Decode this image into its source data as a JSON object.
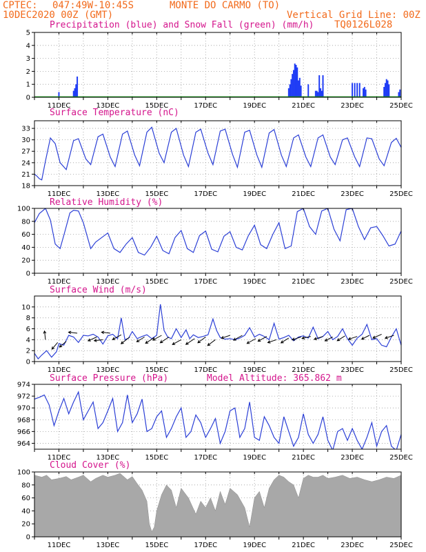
{
  "header": {
    "source": "CPTEC:",
    "coords": "047:49W-10:45S",
    "station": "MONTE DO CARMO (TO)",
    "run": "10DEC2020 00Z (GMT)",
    "grid_note": "Vertical Grid Line: 00Z",
    "code": "TQ0126L028"
  },
  "x_axis": {
    "start": "10DEC2020 00Z",
    "end": "25DEC2020 00Z",
    "day_ticks": [
      1,
      2,
      3,
      4,
      5,
      6,
      7,
      8,
      9,
      10,
      11,
      12,
      13,
      14,
      15
    ],
    "labels": [
      {
        "day": 1,
        "text": "11DEC"
      },
      {
        "day": 3,
        "text": "13DEC"
      },
      {
        "day": 5,
        "text": "15DEC"
      },
      {
        "day": 7,
        "text": "17DEC"
      },
      {
        "day": 9,
        "text": "19DEC"
      },
      {
        "day": 11,
        "text": "21DEC"
      },
      {
        "day": 13,
        "text": "23DEC"
      },
      {
        "day": 15,
        "text": "25DEC"
      }
    ]
  },
  "colors": {
    "line": "#2b3fd6",
    "precip": "#1f3cf5",
    "snow": "#1aa01a",
    "cloud": "#a8a8a8",
    "title": "#d4148c",
    "header": "#f26a1b",
    "arrow": "#000000"
  },
  "chart_data": [
    {
      "id": "precip",
      "type": "bar",
      "title": "Precipitation (blue) and Snow Fall (green) (mm/h)",
      "ylim": [
        0,
        5
      ],
      "yticks": [
        0,
        1,
        2,
        3,
        4,
        5
      ],
      "grid": true,
      "series": [
        {
          "name": "Precipitation",
          "x": [
            1.0,
            1.6,
            1.65,
            1.7,
            1.75,
            10.4,
            10.45,
            10.5,
            10.55,
            10.6,
            10.65,
            10.7,
            10.75,
            10.8,
            10.85,
            10.9,
            11.2,
            11.5,
            11.55,
            11.6,
            11.65,
            11.7,
            11.75,
            11.8,
            13.0,
            13.1,
            13.2,
            13.3,
            13.45,
            13.5,
            13.55,
            14.3,
            14.35,
            14.4,
            14.45,
            14.5,
            14.9,
            14.95
          ],
          "values": [
            0.4,
            0.5,
            0.7,
            1.0,
            1.6,
            0.7,
            1.0,
            1.4,
            1.8,
            2.1,
            2.6,
            2.5,
            2.3,
            1.3,
            1.5,
            0.9,
            1.0,
            0.5,
            0.5,
            0.4,
            1.7,
            0.7,
            0.5,
            1.7,
            1.1,
            1.1,
            1.1,
            1.1,
            0.7,
            0.8,
            0.6,
            0.8,
            1.1,
            1.4,
            1.3,
            1.0,
            0.4,
            0.6
          ]
        },
        {
          "name": "Snow Fall",
          "x": [
            0,
            15
          ],
          "values": [
            0,
            0
          ]
        }
      ]
    },
    {
      "id": "temperature",
      "type": "line",
      "title": "Surface Temperature (nC)",
      "ylim": [
        18,
        35
      ],
      "yticks": [
        18,
        21,
        24,
        27,
        30,
        33
      ],
      "grid": true,
      "series": [
        {
          "name": "Temperature",
          "x": [
            0,
            0.1,
            0.2,
            0.3,
            0.45,
            0.65,
            0.85,
            1.05,
            1.3,
            1.6,
            1.8,
            2.1,
            2.3,
            2.6,
            2.8,
            3.1,
            3.3,
            3.6,
            3.8,
            4.1,
            4.3,
            4.6,
            4.8,
            5.1,
            5.3,
            5.6,
            5.8,
            6.1,
            6.3,
            6.6,
            6.8,
            7.1,
            7.3,
            7.6,
            7.8,
            8.1,
            8.3,
            8.6,
            8.8,
            9.1,
            9.3,
            9.6,
            9.8,
            10.1,
            10.3,
            10.6,
            10.8,
            11.1,
            11.3,
            11.6,
            11.8,
            12.1,
            12.3,
            12.6,
            12.8,
            13.1,
            13.3,
            13.6,
            13.8,
            14.1,
            14.3,
            14.6,
            14.8,
            15.0
          ],
          "values": [
            21.0,
            20.5,
            19.8,
            19.5,
            24.5,
            30.5,
            29.0,
            24.0,
            22.2,
            29.8,
            30.3,
            25.0,
            23.5,
            30.8,
            31.5,
            25.5,
            23.0,
            31.5,
            32.3,
            26.0,
            23.2,
            32.0,
            33.3,
            26.5,
            24.0,
            32.0,
            33.0,
            26.0,
            23.0,
            32.0,
            32.8,
            26.5,
            23.5,
            32.3,
            32.8,
            26.2,
            22.8,
            32.0,
            32.5,
            26.0,
            22.8,
            31.8,
            32.7,
            26.0,
            23.0,
            30.5,
            31.3,
            25.5,
            23.0,
            30.5,
            31.3,
            25.5,
            23.5,
            30.0,
            30.5,
            25.5,
            23.0,
            30.5,
            30.3,
            25.0,
            23.2,
            29.3,
            30.4,
            28.0
          ]
        }
      ]
    },
    {
      "id": "humidity",
      "type": "line",
      "title": "Relative Humidity (%)",
      "ylim": [
        0,
        100
      ],
      "yticks": [
        0,
        20,
        40,
        60,
        80,
        100
      ],
      "grid": true,
      "series": [
        {
          "name": "Relative Humidity",
          "x": [
            0,
            0.2,
            0.45,
            0.65,
            0.85,
            1.05,
            1.25,
            1.45,
            1.6,
            1.8,
            2.0,
            2.3,
            2.5,
            2.75,
            3.0,
            3.25,
            3.5,
            3.75,
            4.0,
            4.25,
            4.5,
            4.75,
            5.0,
            5.25,
            5.5,
            5.75,
            6.0,
            6.25,
            6.5,
            6.75,
            7.0,
            7.25,
            7.5,
            7.75,
            8.0,
            8.25,
            8.5,
            8.75,
            9.0,
            9.25,
            9.5,
            9.75,
            10.0,
            10.25,
            10.5,
            10.75,
            11.0,
            11.25,
            11.5,
            11.75,
            12.0,
            12.25,
            12.5,
            12.75,
            13.0,
            13.25,
            13.5,
            13.75,
            14.0,
            14.25,
            14.5,
            14.75,
            15.0
          ],
          "values": [
            78,
            92,
            100,
            82,
            45,
            38,
            65,
            93,
            97,
            96,
            78,
            38,
            48,
            55,
            62,
            38,
            32,
            45,
            55,
            32,
            28,
            40,
            57,
            35,
            30,
            55,
            66,
            38,
            32,
            58,
            65,
            37,
            33,
            57,
            64,
            40,
            36,
            58,
            74,
            44,
            38,
            60,
            78,
            38,
            42,
            95,
            100,
            72,
            60,
            96,
            100,
            68,
            50,
            98,
            100,
            72,
            52,
            70,
            72,
            58,
            42,
            45,
            65
          ]
        }
      ]
    },
    {
      "id": "wind",
      "type": "line",
      "title": "Surface Wind (m/s)",
      "ylim": [
        0,
        12
      ],
      "yticks": [
        0,
        2,
        4,
        6,
        8,
        10
      ],
      "grid": true,
      "series": [
        {
          "name": "Wind Speed",
          "x": [
            0,
            0.15,
            0.3,
            0.5,
            0.7,
            0.9,
            1.0,
            1.2,
            1.4,
            1.6,
            1.8,
            2.0,
            2.2,
            2.4,
            2.6,
            2.8,
            3.0,
            3.2,
            3.4,
            3.55,
            3.7,
            3.85,
            4.0,
            4.2,
            4.4,
            4.6,
            4.8,
            5.0,
            5.15,
            5.3,
            5.45,
            5.6,
            5.8,
            6.0,
            6.2,
            6.35,
            6.5,
            6.7,
            6.9,
            7.1,
            7.3,
            7.45,
            7.6,
            7.8,
            8.0,
            8.2,
            8.4,
            8.6,
            8.8,
            9.0,
            9.2,
            9.4,
            9.6,
            9.8,
            10.0,
            10.2,
            10.4,
            10.6,
            10.8,
            11.0,
            11.2,
            11.4,
            11.6,
            11.8,
            12.0,
            12.2,
            12.4,
            12.6,
            12.8,
            13.0,
            13.2,
            13.4,
            13.6,
            13.8,
            14.0,
            14.2,
            14.4,
            14.6,
            14.8,
            15.0
          ],
          "values": [
            1.5,
            0.5,
            1.2,
            2.0,
            0.8,
            1.8,
            3.3,
            3.0,
            4.8,
            4.5,
            3.5,
            4.8,
            4.7,
            5.0,
            4.5,
            3.2,
            4.7,
            5.0,
            4.2,
            8.0,
            4.0,
            4.3,
            5.5,
            4.2,
            4.6,
            4.9,
            4.2,
            4.8,
            10.5,
            5.7,
            4.5,
            4.2,
            6.0,
            4.4,
            5.8,
            4.2,
            4.9,
            4.4,
            4.6,
            4.9,
            7.8,
            5.7,
            4.4,
            4.1,
            4.2,
            4.0,
            4.3,
            4.8,
            6.2,
            4.5,
            5.0,
            4.6,
            4.0,
            7.0,
            4.1,
            4.4,
            4.8,
            3.8,
            4.5,
            4.7,
            4.3,
            6.3,
            4.2,
            4.6,
            5.5,
            4.0,
            4.6,
            6.0,
            4.2,
            3.0,
            4.3,
            5.0,
            6.8,
            4.0,
            4.2,
            3.0,
            2.7,
            4.5,
            6.0,
            3.0
          ]
        },
        {
          "name": "Wind Direction",
          "type": "vectors",
          "x": [
            0.45,
            0.95,
            1.3,
            1.75,
            2.55,
            2.8,
            3.1,
            3.55,
            3.9,
            4.5,
            4.9,
            5.2,
            5.5,
            6.0,
            6.55,
            7.0,
            7.4,
            8.0,
            8.5,
            9.05,
            9.5,
            9.9,
            10.4,
            10.9,
            11.3,
            11.8,
            12.2,
            12.7,
            13.2,
            13.7,
            14.2,
            14.7
          ],
          "y": [
            4.0,
            3.5,
            3.7,
            5.2,
            4.5,
            4.0,
            5.2,
            4.9,
            4.5,
            4.5,
            4.4,
            4.8,
            4.5,
            4.0,
            4.2,
            4.5,
            4.0,
            4.8,
            4.8,
            4.2,
            4.6,
            4.0,
            4.3,
            4.5,
            4.6,
            4.6,
            4.5,
            4.7,
            4.6,
            4.8,
            5.0,
            4.8
          ],
          "u": [
            -0.1,
            -0.6,
            -0.7,
            -0.9,
            -0.9,
            -0.9,
            -0.9,
            -0.9,
            -0.9,
            -0.8,
            -0.9,
            -0.9,
            -0.9,
            -0.9,
            -0.9,
            -0.8,
            -0.8,
            -0.9,
            -0.9,
            -0.9,
            -0.9,
            -0.9,
            -0.8,
            -0.9,
            -0.9,
            -0.9,
            -0.8,
            -0.8,
            -0.9,
            -0.8,
            -0.9,
            -0.9
          ],
          "v": [
            0.9,
            -0.7,
            -0.6,
            0.1,
            -0.4,
            -0.1,
            0.1,
            -0.5,
            -0.7,
            -0.5,
            -0.6,
            -0.5,
            -0.6,
            -0.5,
            -0.6,
            -0.6,
            -0.6,
            -0.3,
            -0.5,
            -0.5,
            -0.5,
            -0.3,
            -0.5,
            -0.3,
            -0.2,
            -0.3,
            -0.4,
            -0.5,
            -0.3,
            -0.4,
            -0.4,
            -0.3
          ]
        }
      ]
    },
    {
      "id": "pressure",
      "type": "line",
      "title": "Surface Pressure (hPa)",
      "annotation": "Model Altitude: 365.862 m",
      "ylim": [
        963,
        974
      ],
      "yticks": [
        964,
        966,
        968,
        970,
        972,
        974
      ],
      "grid": true,
      "series": [
        {
          "name": "Surface Pressure",
          "x": [
            0,
            0.2,
            0.4,
            0.6,
            0.8,
            1.0,
            1.2,
            1.4,
            1.6,
            1.8,
            2.0,
            2.2,
            2.4,
            2.6,
            2.8,
            3.0,
            3.2,
            3.4,
            3.6,
            3.8,
            4.0,
            4.2,
            4.4,
            4.6,
            4.8,
            5.0,
            5.2,
            5.4,
            5.6,
            5.8,
            6.0,
            6.2,
            6.4,
            6.6,
            6.8,
            7.0,
            7.2,
            7.4,
            7.6,
            7.8,
            8.0,
            8.2,
            8.4,
            8.6,
            8.8,
            9.0,
            9.2,
            9.4,
            9.6,
            9.8,
            10.0,
            10.2,
            10.4,
            10.6,
            10.8,
            11.0,
            11.2,
            11.4,
            11.6,
            11.8,
            12.0,
            12.2,
            12.4,
            12.6,
            12.8,
            13.0,
            13.2,
            13.4,
            13.6,
            13.8,
            14.0,
            14.2,
            14.4,
            14.6,
            14.8,
            15.0
          ],
          "values": [
            971.5,
            971.8,
            972.2,
            970.5,
            967.0,
            969.5,
            971.6,
            969.0,
            971.0,
            972.7,
            968.0,
            969.5,
            971.0,
            966.5,
            967.5,
            969.5,
            971.6,
            966.0,
            967.5,
            972.2,
            967.5,
            969.0,
            971.5,
            966.0,
            966.5,
            968.5,
            969.5,
            965.0,
            966.5,
            968.5,
            970.0,
            965.0,
            966.0,
            968.8,
            967.5,
            965.0,
            966.5,
            968.2,
            964.0,
            966.0,
            969.5,
            970.0,
            965.0,
            966.5,
            971.0,
            965.0,
            964.5,
            968.5,
            967.0,
            965.0,
            964.0,
            968.5,
            966.0,
            963.5,
            965.0,
            969.0,
            965.5,
            964.0,
            965.5,
            968.5,
            964.5,
            962.8,
            966.0,
            966.5,
            964.5,
            966.5,
            964.5,
            963.0,
            965.0,
            967.5,
            963.5,
            966.0,
            967.0,
            963.5,
            962.8,
            965.5
          ]
        }
      ]
    },
    {
      "id": "cloud",
      "type": "area",
      "title": "Cloud Cover (%)",
      "ylim": [
        0,
        100
      ],
      "yticks": [
        0,
        20,
        40,
        60,
        80,
        100
      ],
      "grid": true,
      "series": [
        {
          "name": "Cloud Cover",
          "x": [
            0,
            0.3,
            0.5,
            0.7,
            1.0,
            1.3,
            1.5,
            1.8,
            2.0,
            2.3,
            2.5,
            2.8,
            3.0,
            3.3,
            3.5,
            3.8,
            4.0,
            4.2,
            4.4,
            4.6,
            4.7,
            4.8,
            4.9,
            5.0,
            5.2,
            5.4,
            5.6,
            5.8,
            6.0,
            6.3,
            6.6,
            6.8,
            7.0,
            7.2,
            7.4,
            7.6,
            7.8,
            8.0,
            8.3,
            8.6,
            8.8,
            9.0,
            9.2,
            9.4,
            9.6,
            9.8,
            10.0,
            10.2,
            10.4,
            10.6,
            10.8,
            11.0,
            11.2,
            11.4,
            11.6,
            11.8,
            12.0,
            12.3,
            12.6,
            12.9,
            13.2,
            13.5,
            13.8,
            14.1,
            14.4,
            14.7,
            15.0
          ],
          "values": [
            95,
            92,
            95,
            88,
            90,
            93,
            88,
            92,
            95,
            85,
            90,
            95,
            92,
            95,
            98,
            88,
            93,
            82,
            72,
            55,
            20,
            8,
            15,
            40,
            65,
            80,
            72,
            45,
            75,
            60,
            35,
            55,
            45,
            60,
            40,
            70,
            50,
            75,
            65,
            45,
            15,
            60,
            70,
            45,
            75,
            88,
            95,
            92,
            85,
            80,
            60,
            90,
            95,
            92,
            92,
            95,
            90,
            92,
            95,
            90,
            92,
            88,
            85,
            88,
            92,
            90,
            95
          ]
        }
      ]
    }
  ]
}
